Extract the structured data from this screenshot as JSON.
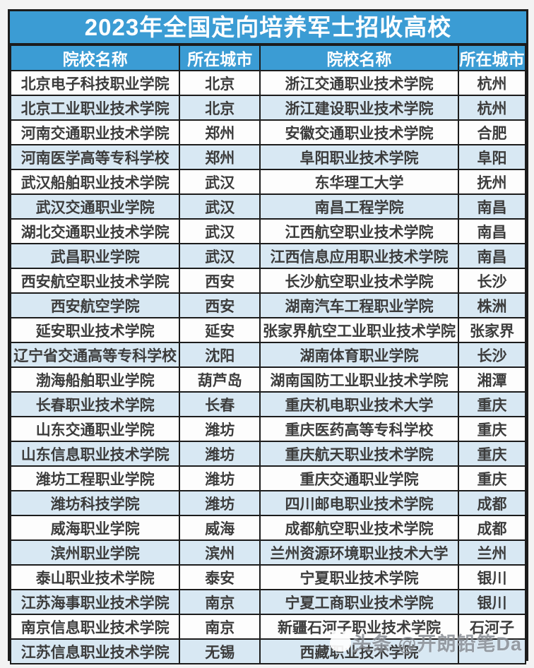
{
  "title": "2023年全国定向培养军士招收高校",
  "table": {
    "headers": [
      "院校名称",
      "所在城市",
      "院校名称",
      "所在城市"
    ],
    "rows": [
      [
        "北京电子科技职业学院",
        "北京",
        "浙江交通职业技术学院",
        "杭州"
      ],
      [
        "北京工业职业技术学院",
        "北京",
        "浙江建设职业技术学院",
        "杭州"
      ],
      [
        "河南交通职业技术学院",
        "郑州",
        "安徽交通职业技术学院",
        "合肥"
      ],
      [
        "河南医学高等专科学校",
        "郑州",
        "阜阳职业技术学院",
        "阜阳"
      ],
      [
        "武汉船舶职业技术学院",
        "武汉",
        "东华理工大学",
        "抚州"
      ],
      [
        "武汉交通职业学院",
        "武汉",
        "南昌工程学院",
        "南昌"
      ],
      [
        "湖北交通职业技术学院",
        "武汉",
        "江西航空职业技术学院",
        "南昌"
      ],
      [
        "武昌职业学院",
        "武汉",
        "江西信息应用职业技术学院",
        "南昌"
      ],
      [
        "西安航空职业技术学院",
        "西安",
        "长沙航空职业技术学院",
        "长沙"
      ],
      [
        "西安航空学院",
        "西安",
        "湖南汽车工程职业学院",
        "株洲"
      ],
      [
        "延安职业技术学院",
        "延安",
        "张家界航空工业职业技术学院",
        "张家界"
      ],
      [
        "辽宁省交通高等专科学校",
        "沈阳",
        "湖南体育职业学院",
        "长沙"
      ],
      [
        "渤海船舶职业学院",
        "葫芦岛",
        "湖南国防工业职业技术学院",
        "湘潭"
      ],
      [
        "长春职业技术学院",
        "长春",
        "重庆机电职业技术大学",
        "重庆"
      ],
      [
        "山东交通职业学院",
        "潍坊",
        "重庆医药高等专科学校",
        "重庆"
      ],
      [
        "山东信息职业技术学院",
        "潍坊",
        "重庆航天职业技术学院",
        "重庆"
      ],
      [
        "潍坊工程职业学院",
        "潍坊",
        "重庆交通职业学院",
        "重庆"
      ],
      [
        "潍坊科技学院",
        "潍坊",
        "四川邮电职业技术学院",
        "成都"
      ],
      [
        "威海职业学院",
        "威海",
        "成都航空职业技术学院",
        "成都"
      ],
      [
        "滨州职业学院",
        "滨州",
        "兰州资源环境职业技术大学",
        "兰州"
      ],
      [
        "泰山职业技术学院",
        "泰安",
        "宁夏职业技术学院",
        "银川"
      ],
      [
        "江苏海事职业技术学院",
        "南京",
        "宁夏工商职业技术学院",
        "银川"
      ],
      [
        "南京信息职业技术学院",
        "南京",
        "新疆石河子职业技术学院",
        "石河子"
      ],
      [
        "江苏信息职业技术学院",
        "无锡",
        "西藏职业技术学院",
        ""
      ]
    ]
  },
  "watermark": {
    "icon": "toutiao-logo",
    "text": "头条 @开朗铅笔Da"
  },
  "colors": {
    "header_blue": "#3b9cd4",
    "alt_row_blue": "#d8e8f3",
    "row_white": "#fdfdfd",
    "border_black": "#1c1c1c",
    "cell_text": "#3c3c3c",
    "title_text": "#ffffff",
    "watermark_gray": "#7d838a"
  }
}
